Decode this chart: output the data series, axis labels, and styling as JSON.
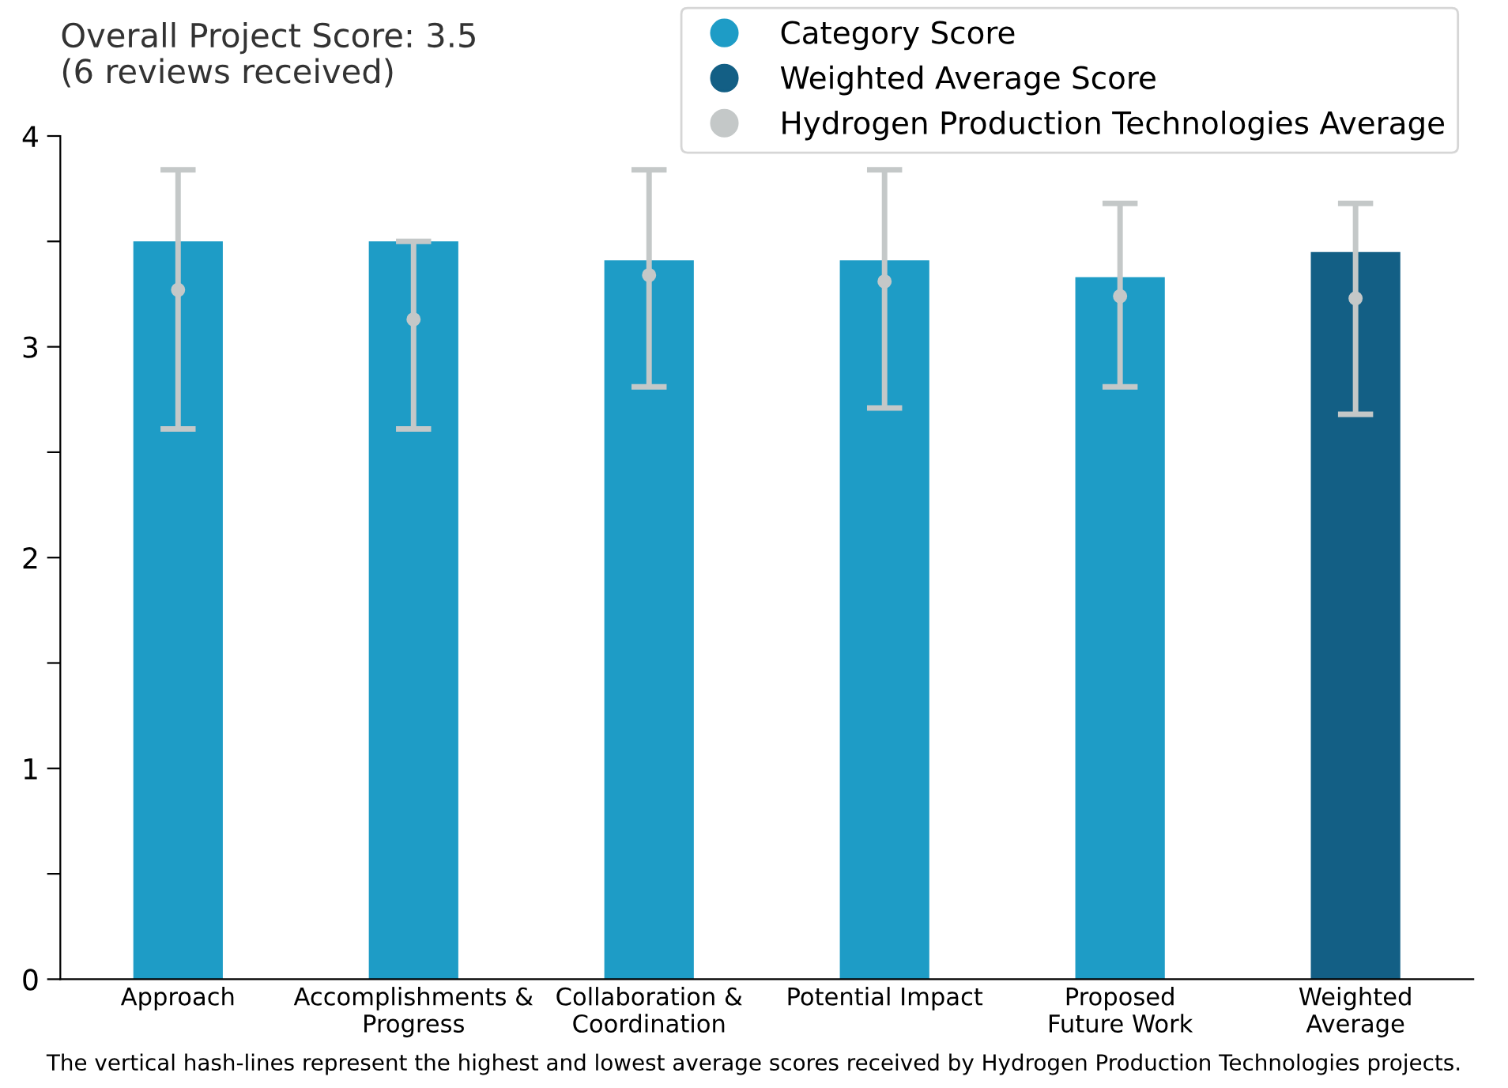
{
  "chart_data": {
    "type": "bar",
    "title": "Overall Project Score: 3.5",
    "subtitle": "(6 reviews received)",
    "categories": [
      "Approach",
      "Accomplishments &\nProgress",
      "Collaboration &\nCoordination",
      "Potential Impact",
      "Proposed\nFuture Work",
      "Weighted\nAverage"
    ],
    "series": [
      {
        "name": "Category Score",
        "color": "#1e9cc6",
        "values": [
          3.5,
          3.5,
          3.41,
          3.41,
          3.33,
          null
        ]
      },
      {
        "name": "Weighted Average Score",
        "color": "#135f85",
        "values": [
          null,
          null,
          null,
          null,
          null,
          3.45
        ]
      },
      {
        "name": "Hydrogen Production Technologies Average",
        "type": "scatter",
        "color": "#c4c8c8",
        "values": [
          3.27,
          3.13,
          3.34,
          3.31,
          3.24,
          3.23
        ],
        "errors": [
          [
            2.61,
            3.84
          ],
          [
            2.61,
            3.5
          ],
          [
            2.81,
            3.84
          ],
          [
            2.71,
            3.84
          ],
          [
            2.81,
            3.68
          ],
          [
            2.68,
            3.68
          ]
        ]
      }
    ],
    "ylim": [
      0,
      4
    ],
    "yticks": [
      0,
      {
        "value": 0.5,
        "label": null
      },
      1,
      {
        "value": 1.5,
        "label": null
      },
      2,
      {
        "value": 2.5,
        "label": null
      },
      3,
      {
        "value": 3.5,
        "label": null
      },
      4
    ],
    "grid": false,
    "legend": "top right",
    "marker": "circle",
    "annotations": [
      "The vertical hash-lines represent the highest and lowest average scores received by Hydrogen Production Technologies projects."
    ]
  }
}
